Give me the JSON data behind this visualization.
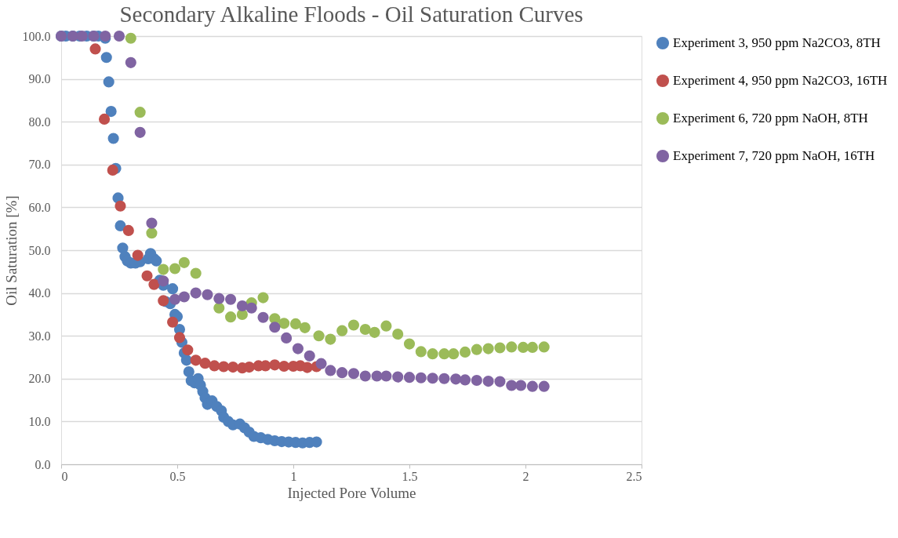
{
  "chart_data": {
    "type": "scatter",
    "title": "Secondary Alkaline Floods - Oil Saturation Curves",
    "xlabel": "Injected Pore Volume",
    "ylabel": "Oil Saturation [%]",
    "xlim": [
      0,
      2.5
    ],
    "xticks": [
      0,
      0.5,
      1,
      1.5,
      2,
      2.5
    ],
    "ylim": [
      0,
      100
    ],
    "yticks": [
      {
        "value": 0,
        "label": "0.0"
      },
      {
        "value": 10,
        "label": "10.0"
      },
      {
        "value": 20,
        "label": "20.0"
      },
      {
        "value": 30,
        "label": "30.0"
      },
      {
        "value": 40,
        "label": "40.0"
      },
      {
        "value": 50,
        "label": "50.0"
      },
      {
        "value": 60,
        "label": "60.0"
      },
      {
        "value": 70,
        "label": "70.0"
      },
      {
        "value": 80,
        "label": "80.0"
      },
      {
        "value": 90,
        "label": "90.0"
      },
      {
        "value": 100,
        "label": "100.0"
      }
    ],
    "grid": "y",
    "legend": "right",
    "marker": "circle",
    "series": [
      {
        "name": "Experiment 3, 950 ppm Na2CO3, 8TH",
        "color": "#4f81bd",
        "x": [
          0,
          0.02,
          0.05,
          0.08,
          0.11,
          0.14,
          0.16,
          0.19,
          0.195,
          0.205,
          0.215,
          0.225,
          0.235,
          0.245,
          0.255,
          0.265,
          0.275,
          0.285,
          0.3,
          0.32,
          0.34,
          0.375,
          0.385,
          0.4,
          0.41,
          0.425,
          0.44,
          0.45,
          0.47,
          0.48,
          0.49,
          0.5,
          0.51,
          0.52,
          0.53,
          0.54,
          0.55,
          0.56,
          0.575,
          0.59,
          0.6,
          0.61,
          0.62,
          0.63,
          0.65,
          0.67,
          0.69,
          0.7,
          0.72,
          0.74,
          0.77,
          0.79,
          0.81,
          0.83,
          0.86,
          0.89,
          0.92,
          0.95,
          0.98,
          1.01,
          1.04,
          1.07,
          1.1
        ],
        "values": [
          100,
          100,
          100,
          100,
          100,
          100,
          100,
          99.5,
          95,
          89.3,
          82.4,
          76.1,
          69.1,
          62.2,
          55.7,
          50.5,
          48.5,
          47.5,
          47,
          47,
          47.3,
          48,
          49.2,
          48,
          47.5,
          43,
          41.8,
          38,
          37.5,
          41,
          35,
          34.5,
          31.5,
          28.5,
          26,
          24.3,
          21.6,
          19.5,
          19,
          20,
          18.5,
          17,
          15.5,
          14,
          14.8,
          13.5,
          12.5,
          11,
          10,
          9.2,
          9.4,
          8.5,
          7.5,
          6.5,
          6.2,
          5.8,
          5.5,
          5.3,
          5.2,
          5.1,
          5,
          5.1,
          5.2
        ]
      },
      {
        "name": "Experiment 4, 950 ppm Na2CO3, 16TH",
        "color": "#c0504d",
        "x": [
          0.147,
          0.186,
          0.222,
          0.255,
          0.29,
          0.33,
          0.37,
          0.4,
          0.44,
          0.48,
          0.51,
          0.545,
          0.58,
          0.62,
          0.66,
          0.7,
          0.74,
          0.78,
          0.81,
          0.85,
          0.88,
          0.92,
          0.96,
          1.0,
          1.03,
          1.06,
          1.1
        ],
        "values": [
          97,
          80.6,
          68.7,
          60.3,
          54.6,
          48.8,
          44,
          42,
          38.2,
          33.2,
          29.6,
          26.7,
          24.3,
          23.6,
          23,
          22.8,
          22.7,
          22.5,
          22.7,
          23,
          23,
          23.2,
          22.9,
          22.9,
          23,
          22.6,
          22.8
        ]
      },
      {
        "name": "Experiment 6, 720 ppm NaOH, 8TH",
        "color": "#9bbb59",
        "x": [
          0.3,
          0.34,
          0.39,
          0.44,
          0.49,
          0.53,
          0.58,
          0.68,
          0.73,
          0.78,
          0.82,
          0.87,
          0.92,
          0.96,
          1.01,
          1.05,
          1.11,
          1.16,
          1.21,
          1.26,
          1.31,
          1.35,
          1.4,
          1.45,
          1.5,
          1.55,
          1.6,
          1.65,
          1.69,
          1.74,
          1.79,
          1.84,
          1.89,
          1.94,
          1.99,
          2.03,
          2.08
        ],
        "values": [
          99.5,
          82.2,
          54,
          45.5,
          45.7,
          47.1,
          44.6,
          36.5,
          34.4,
          35,
          37.7,
          38.9,
          34,
          32.9,
          32.8,
          31.9,
          30,
          29.2,
          31.2,
          32.5,
          31.5,
          30.8,
          32.3,
          30.4,
          28.1,
          26.3,
          25.8,
          25.8,
          25.8,
          26.2,
          26.8,
          27,
          27.2,
          27.4,
          27.3,
          27.3,
          27.4
        ]
      },
      {
        "name": "Experiment 7, 720 ppm NaOH, 16TH",
        "color": "#8064a2",
        "x": [
          0,
          0.05,
          0.09,
          0.14,
          0.19,
          0.25,
          0.3,
          0.34,
          0.39,
          0.44,
          0.49,
          0.53,
          0.58,
          0.63,
          0.68,
          0.73,
          0.78,
          0.82,
          0.87,
          0.92,
          0.97,
          1.02,
          1.07,
          1.12,
          1.16,
          1.21,
          1.26,
          1.31,
          1.36,
          1.4,
          1.45,
          1.5,
          1.55,
          1.6,
          1.65,
          1.7,
          1.74,
          1.79,
          1.84,
          1.89,
          1.94,
          1.98,
          2.03,
          2.08
        ],
        "values": [
          100,
          100,
          100,
          100,
          100,
          100,
          93.8,
          77.5,
          56.3,
          42.8,
          38.5,
          39.1,
          40,
          39.6,
          38.7,
          38.5,
          37,
          36.5,
          34.3,
          32,
          29.5,
          27,
          25.3,
          23.5,
          21.9,
          21.4,
          21.2,
          20.6,
          20.6,
          20.6,
          20.4,
          20.3,
          20.2,
          20.1,
          20,
          19.9,
          19.7,
          19.6,
          19.4,
          19.3,
          18.4,
          18.4,
          18.2,
          18.2
        ]
      }
    ]
  }
}
